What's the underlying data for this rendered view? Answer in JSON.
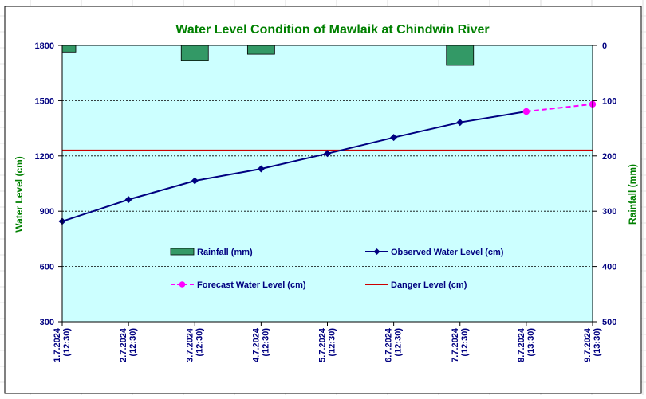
{
  "chart_data": {
    "type": "line",
    "title": "Water Level Condition of Mawlaik at Chindwin River",
    "ylabel": "Water Level (cm)",
    "y2label": "Rainfall (mm)",
    "categories": [
      "1.7.2024\n(12:30)",
      "2.7.2024\n(12:30)",
      "3.7.2024\n(12:30)",
      "4.7.2024\n(12:30)",
      "5.7.2024\n(12:30)",
      "6.7.2024\n(12:30)",
      "7.7.2024\n(12:30)",
      "8.7.2024\n(13:30)",
      "9.7.2024\n(13:30)"
    ],
    "ylim": [
      300,
      1800
    ],
    "yticks": [
      300,
      600,
      900,
      1200,
      1500,
      1800
    ],
    "y2lim": [
      0,
      500
    ],
    "y2ticks": [
      0,
      100,
      200,
      300,
      400,
      500
    ],
    "y2_inverted": true,
    "grid": true,
    "legend_position": "inside-center",
    "series": [
      {
        "name": "Rainfall (mm)",
        "kind": "bar",
        "axis": "right",
        "color": "#339966",
        "values": [
          12,
          0,
          27,
          16,
          0,
          0,
          36,
          0,
          0
        ]
      },
      {
        "name": "Observed Water Level (cm)",
        "kind": "line",
        "axis": "left",
        "color": "#000080",
        "marker": "diamond",
        "values": [
          845,
          963,
          1065,
          1130,
          1213,
          1300,
          1382,
          1441,
          null
        ]
      },
      {
        "name": "Forecast Water Level (cm)",
        "kind": "line",
        "axis": "left",
        "color": "#ff00ff",
        "dashed": true,
        "marker": "circle",
        "values": [
          null,
          null,
          null,
          null,
          null,
          null,
          null,
          1441,
          1481
        ]
      },
      {
        "name": "Danger Level (cm)",
        "kind": "hline",
        "axis": "left",
        "color": "#cc0000",
        "value": 1230
      }
    ],
    "colors": {
      "title": "#008000",
      "axis_title": "#008000",
      "tick": "#000080",
      "plot_background": "#ccffff"
    }
  }
}
